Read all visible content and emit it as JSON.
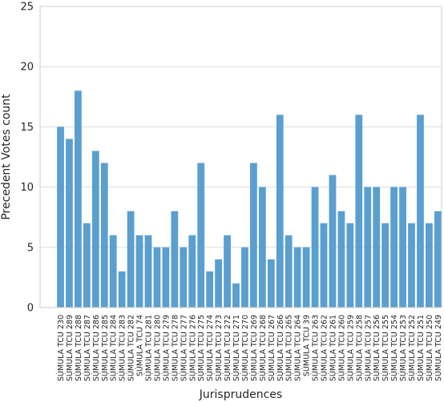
{
  "chart_data": {
    "type": "bar",
    "title": "",
    "xlabel": "Jurisprudences",
    "ylabel": "Precedent Votes count",
    "ylim": [
      0,
      25
    ],
    "yticks": [
      0,
      5,
      10,
      15,
      20,
      25
    ],
    "grid": true,
    "bar_color": "#5a9fcf",
    "categories": [
      "SÚMULA TCU 230",
      "SÚMULA TCU 289",
      "SÚMULA TCU 288",
      "SÚMULA TCU 287",
      "SÚMULA TCU 286",
      "SÚMULA TCU 285",
      "SÚMULA TCU 284",
      "SÚMULA TCU 283",
      "SÚMULA TCU 282",
      "SÚMULA TCU 74",
      "SÚMULA TCU 281",
      "SÚMULA TCU 280",
      "SÚMULA TCU 279",
      "SÚMULA TCU 278",
      "SÚMULA TCU 277",
      "SÚMULA TCU 276",
      "SÚMULA TCU 275",
      "SÚMULA TCU 274",
      "SÚMULA TCU 273",
      "SÚMULA TCU 272",
      "SÚMULA TCU 271",
      "SÚMULA TCU 270",
      "SÚMULA TCU 269",
      "SÚMULA TCU 268",
      "SÚMULA TCU 267",
      "SÚMULA TCU 266",
      "SÚMULA TCU 265",
      "SÚMULA TCU 264",
      "SÚMULA TCU 39",
      "SÚMULA TCU 263",
      "SÚMULA TCU 262",
      "SÚMULA TCU 261",
      "SÚMULA TCU 260",
      "SÚMULA TCU 259",
      "SÚMULA TCU 258",
      "SÚMULA TCU 257",
      "SÚMULA TCU 256",
      "SÚMULA TCU 255",
      "SÚMULA TCU 254",
      "SÚMULA TCU 253",
      "SÚMULA TCU 252",
      "SÚMULA TCU 251",
      "SÚMULA TCU 250",
      "SÚMULA TCU 249"
    ],
    "values": [
      15,
      14,
      18,
      7,
      13,
      12,
      6,
      3,
      8,
      6,
      6,
      5,
      5,
      8,
      5,
      6,
      12,
      3,
      4,
      6,
      2,
      5,
      12,
      10,
      4,
      16,
      6,
      5,
      5,
      10,
      7,
      11,
      8,
      7,
      16,
      10,
      10,
      7,
      10,
      10,
      7,
      16,
      7,
      8
    ]
  }
}
